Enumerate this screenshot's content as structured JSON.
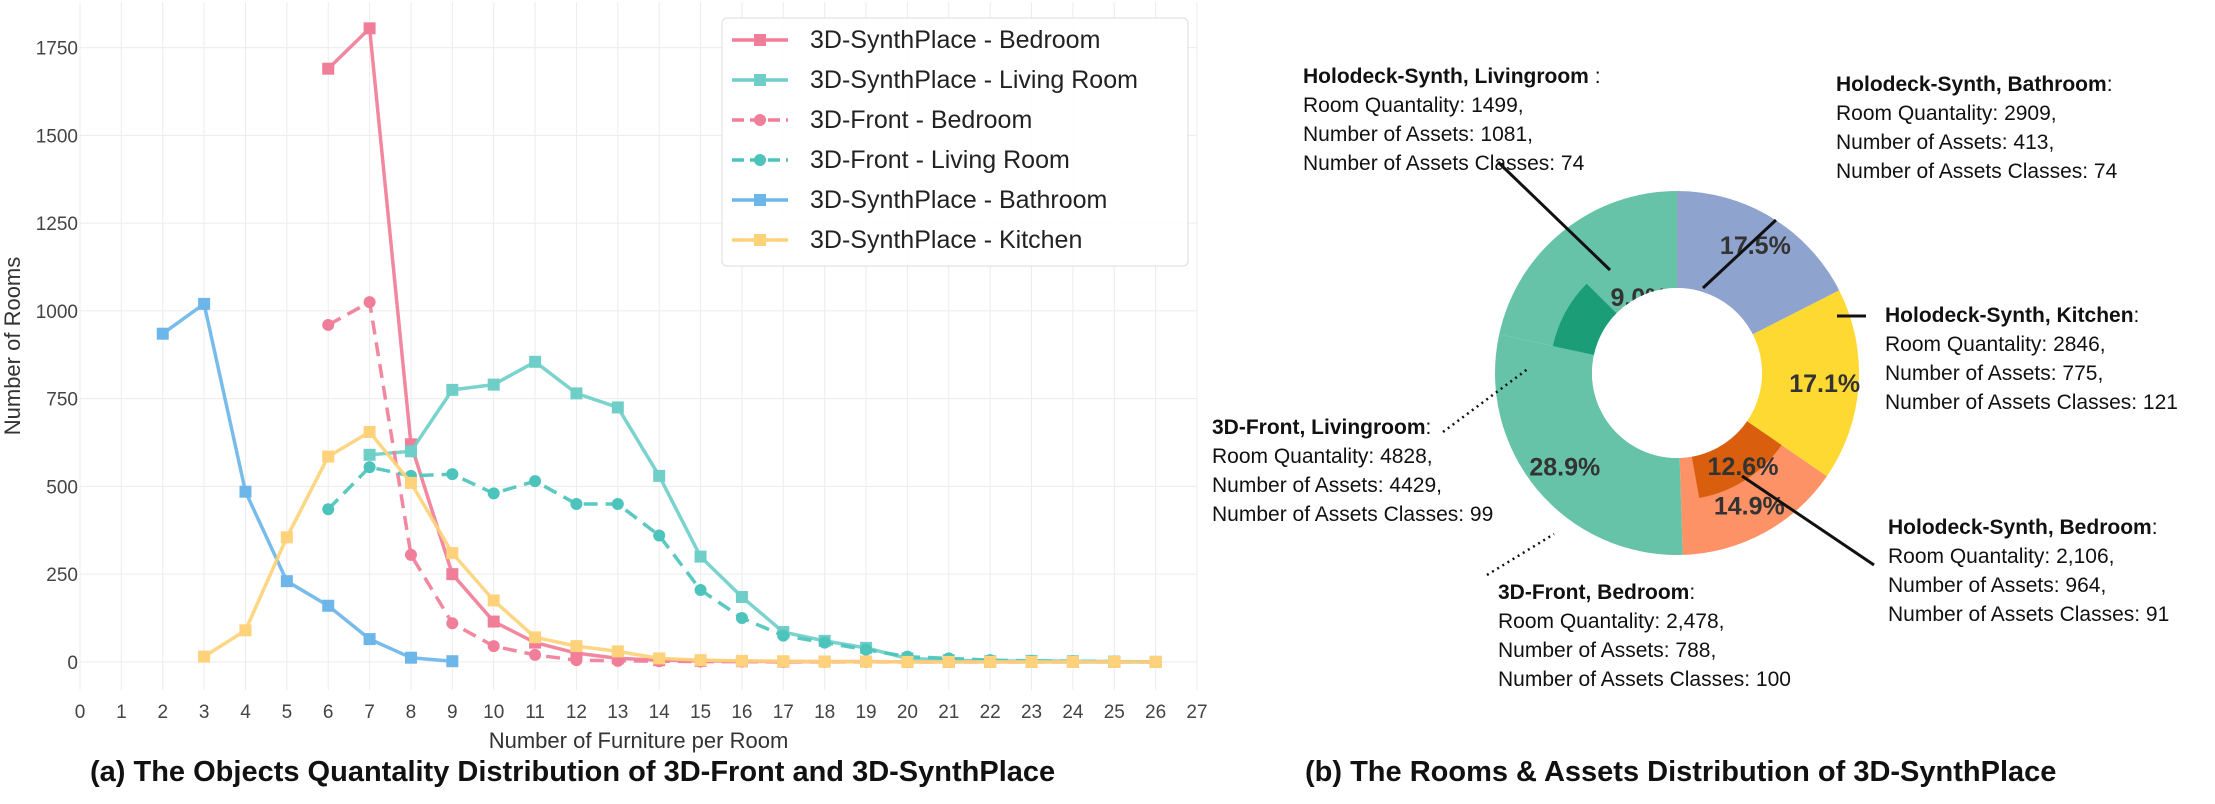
{
  "captions": {
    "left": "(a) The Objects Quantality Distribution of 3D-Front and 3D-SynthPlace",
    "right": "(b) The Rooms & Assets Distribution of 3D-SynthPlace"
  },
  "chart_data": [
    {
      "type": "line",
      "title": "",
      "xlabel": "Number of Furniture per Room",
      "ylabel": "Number of Rooms",
      "xlim": [
        0,
        27
      ],
      "ylim": [
        -80,
        1880
      ],
      "xticks": [
        0,
        1,
        2,
        3,
        4,
        5,
        6,
        7,
        8,
        9,
        10,
        11,
        12,
        13,
        14,
        15,
        16,
        17,
        18,
        19,
        20,
        21,
        22,
        23,
        24,
        25,
        26,
        27
      ],
      "yticks": [
        0,
        250,
        500,
        750,
        1000,
        1250,
        1500,
        1750
      ],
      "grid": true,
      "legend": "top-right",
      "series": [
        {
          "name": "3D-SynthPlace - Bedroom",
          "color": "#f07e98",
          "dash": "solid",
          "marker": "square",
          "x": [
            6,
            7,
            8,
            9,
            10,
            11,
            12,
            13,
            14,
            15,
            16,
            17,
            18,
            19,
            20,
            21,
            22,
            23,
            24,
            25,
            26
          ],
          "y": [
            1690,
            1805,
            620,
            250,
            115,
            55,
            25,
            10,
            5,
            3,
            2,
            1,
            1,
            1,
            0,
            0,
            0,
            0,
            0,
            0,
            0
          ]
        },
        {
          "name": "3D-SynthPlace - Living Room",
          "color": "#6fcfc8",
          "dash": "solid",
          "marker": "square",
          "x": [
            7,
            8,
            9,
            10,
            11,
            12,
            13,
            14,
            15,
            16,
            17,
            18,
            19,
            20,
            21,
            22,
            23,
            24,
            25,
            26
          ],
          "y": [
            590,
            600,
            775,
            790,
            855,
            765,
            725,
            530,
            300,
            185,
            85,
            60,
            40,
            10,
            5,
            2,
            3,
            2,
            1,
            0
          ]
        },
        {
          "name": "3D-Front - Bedroom",
          "color": "#f07e98",
          "dash": "dashed",
          "marker": "circle",
          "x": [
            6,
            7,
            8,
            9,
            10,
            11,
            12,
            13,
            14,
            15,
            16,
            17,
            18,
            19,
            20,
            21,
            22,
            23,
            24,
            25,
            26
          ],
          "y": [
            960,
            1025,
            305,
            110,
            45,
            20,
            5,
            3,
            2,
            1,
            1,
            0,
            0,
            0,
            0,
            0,
            0,
            0,
            0,
            0,
            0
          ]
        },
        {
          "name": "3D-Front - Living Room",
          "color": "#4cc4bc",
          "dash": "dashed",
          "marker": "circle",
          "x": [
            6,
            7,
            8,
            9,
            10,
            11,
            12,
            13,
            14,
            15,
            16,
            17,
            18,
            19,
            20,
            21,
            22,
            23,
            24,
            25,
            26
          ],
          "y": [
            435,
            555,
            530,
            535,
            480,
            515,
            450,
            450,
            360,
            205,
            125,
            75,
            55,
            35,
            15,
            10,
            5,
            3,
            2,
            1,
            0
          ]
        },
        {
          "name": "3D-SynthPlace - Bathroom",
          "color": "#6cb6ea",
          "dash": "solid",
          "marker": "square",
          "x": [
            2,
            3,
            4,
            5,
            6,
            7,
            8,
            9
          ],
          "y": [
            935,
            1020,
            485,
            230,
            160,
            65,
            12,
            2
          ]
        },
        {
          "name": "3D-SynthPlace - Kitchen",
          "color": "#fdd27a",
          "dash": "solid",
          "marker": "square",
          "x": [
            3,
            4,
            5,
            6,
            7,
            8,
            9,
            10,
            11,
            12,
            13,
            14,
            15,
            16,
            17,
            18,
            19,
            20,
            21,
            22,
            23,
            24,
            25,
            26
          ],
          "y": [
            15,
            90,
            355,
            585,
            655,
            510,
            310,
            175,
            70,
            45,
            30,
            10,
            5,
            3,
            2,
            1,
            1,
            0,
            0,
            0,
            0,
            0,
            0,
            0
          ]
        }
      ]
    },
    {
      "type": "pie",
      "subtype": "nested-donut",
      "outer_ring": [
        {
          "label": "Holodeck-Synth",
          "value": 17.5,
          "text": "17.5%",
          "color": "#8fa3cf"
        },
        {
          "label": "Holodeck-Synth",
          "value": 17.1,
          "text": "17.1%",
          "color": "#fdd932"
        },
        {
          "label": "3D-Front, Bedroom",
          "value": 14.9,
          "text": "14.9%",
          "color": "#fc9265"
        },
        {
          "label": "3D-Front, Livingroom",
          "value": 28.9,
          "text": "28.9%",
          "color": "#67c3a7"
        },
        {
          "label": "Holodeck-Synth, Livingroom",
          "value": 21.6,
          "text": "",
          "color": "#67c3a7"
        }
      ],
      "inner_ring": [
        {
          "label": "Holodeck-Synth, Bedroom",
          "value": 12.6,
          "text": "12.6%",
          "color": "#d95f0e"
        },
        {
          "label": "Holodeck-Synth, Livingroom",
          "value": 9.0,
          "text": "9.0%",
          "color": "#1b9e77"
        }
      ],
      "annotations": [
        {
          "title": "Holodeck-Synth, Livingroom",
          "suffix": " :",
          "lines": [
            "Room Quantality: 1499,",
            "Number of Assets: 1081,",
            "Number of Assets Classes: 74"
          ]
        },
        {
          "title": "Holodeck-Synth, Bathroom",
          "suffix": ":",
          "lines": [
            "Room Quantality: 2909,",
            "Number of Assets: 413,",
            "Number of Assets Classes: 74"
          ]
        },
        {
          "title": "Holodeck-Synth, Kitchen",
          "suffix": ":",
          "lines": [
            "Room Quantality: 2846,",
            "Number of Assets: 775,",
            "Number of Assets Classes: 121"
          ]
        },
        {
          "title": "3D-Front, Livingroom",
          "suffix": ":",
          "lines": [
            "Room Quantality: 4828,",
            "Number of Assets: 4429,",
            "Number of Assets Classes: 99"
          ]
        },
        {
          "title": "Holodeck-Synth, Bedroom",
          "suffix": ":",
          "lines": [
            "Room Quantality: 2,106,",
            "Number of Assets: 964,",
            "Number of Assets Classes: 91"
          ]
        },
        {
          "title": "3D-Front, Bedroom",
          "suffix": ":",
          "lines": [
            "Room Quantality: 2,478,",
            "Number of Assets: 788,",
            "Number of Assets Classes: 100"
          ]
        }
      ]
    }
  ]
}
